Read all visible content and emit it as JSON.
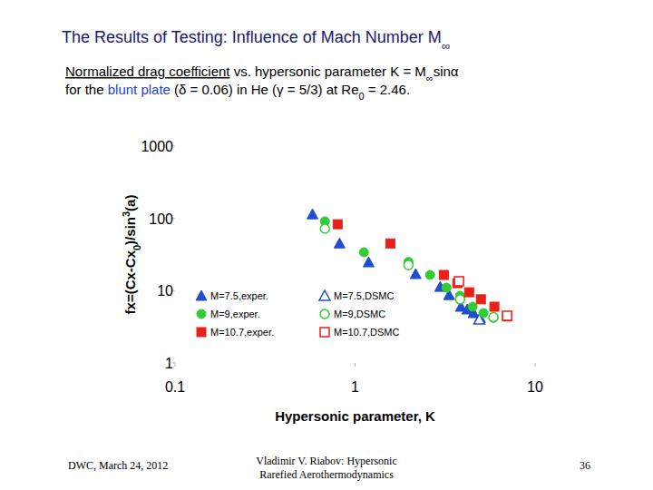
{
  "slide": {
    "title": [
      {
        "text": "The Results of Testing: Influence of Mach Number M",
        "format": "plain"
      },
      {
        "text": "∞",
        "format": "sub"
      }
    ],
    "caption": [
      [
        {
          "text": "Normalized drag coefficient",
          "format": "underline"
        },
        {
          "text": " vs. hypersonic parameter K = M",
          "format": "plain"
        },
        {
          "text": "∞",
          "format": "sub"
        },
        {
          "text": "sinα",
          "format": "plain"
        }
      ],
      [
        {
          "text": "for the ",
          "format": "plain"
        },
        {
          "text": "blunt plate",
          "format": "blue"
        },
        {
          "text": " (δ = 0.06) in He (γ = 5/3) at Re",
          "format": "plain"
        },
        {
          "text": "0",
          "format": "sub"
        },
        {
          "text": " = 2.46.",
          "format": "plain"
        }
      ]
    ],
    "footer_left": "DWC, March 24, 2012",
    "footer_center": [
      "Vladimir V. Riabov: Hypersonic",
      "Rarefied Aerothermodynamics"
    ],
    "page_number": "36"
  },
  "chart_data": {
    "type": "scatter",
    "log": true,
    "x_label": "Hypersonic parameter, K",
    "y_label": [
      {
        "text": "fx=(Cx-Cx",
        "format": "plain"
      },
      {
        "text": "0",
        "format": "sub"
      },
      {
        "text": ")/sin",
        "format": "plain"
      },
      {
        "text": "3",
        "format": "sup"
      },
      {
        "text": "(a)",
        "format": "plain"
      }
    ],
    "xlim": [
      0.1,
      10
    ],
    "ylim": [
      1,
      1000
    ],
    "xticks": [
      0.1,
      1,
      10
    ],
    "yticks": [
      1,
      10,
      100,
      1000
    ],
    "legend": "lower left",
    "series": [
      {
        "name": "M=7.5,exper.",
        "color": "#1f4fd0",
        "marker": "triangle",
        "x": [
          0.58,
          0.82,
          1.19,
          2.17,
          2.97,
          3.33,
          3.87,
          4.2,
          4.55,
          4.94
        ],
        "values": [
          114,
          45,
          24.7,
          17,
          11.3,
          8.7,
          6.0,
          5.5,
          4.9,
          4.2
        ]
      },
      {
        "name": "M=7.5,DSMC",
        "color": "#1f4fd0",
        "marker": "open-triangle",
        "x": [
          4.9
        ],
        "values": [
          4.0
        ]
      },
      {
        "name": "M=9,exper.",
        "color": "#33cc33",
        "marker": "circle",
        "x": [
          0.68,
          1.12,
          1.98,
          2.61,
          3.22,
          3.83,
          4.5,
          5.17,
          5.87
        ],
        "values": [
          91,
          34,
          25,
          16.5,
          11,
          8.5,
          6.0,
          4.9,
          4.2
        ]
      },
      {
        "name": "M=9,DSMC",
        "color": "#33cc33",
        "marker": "open-circle",
        "x": [
          0.68,
          1.98,
          3.83,
          5.87
        ],
        "values": [
          72,
          22.6,
          7.6,
          4.3
        ]
      },
      {
        "name": "M=10.7,exper.",
        "color": "#e8201a",
        "marker": "square",
        "x": [
          0.8,
          1.57,
          3.11,
          3.7,
          4.3,
          5.0,
          5.94,
          6.99
        ],
        "values": [
          83,
          45,
          16.5,
          12.7,
          9.5,
          7.6,
          6.0,
          4.4
        ]
      },
      {
        "name": "M=10.7,DSMC",
        "color": "#e8201a",
        "marker": "open-square",
        "x": [
          3.78,
          6.99
        ],
        "values": [
          13.5,
          4.5
        ]
      }
    ]
  }
}
